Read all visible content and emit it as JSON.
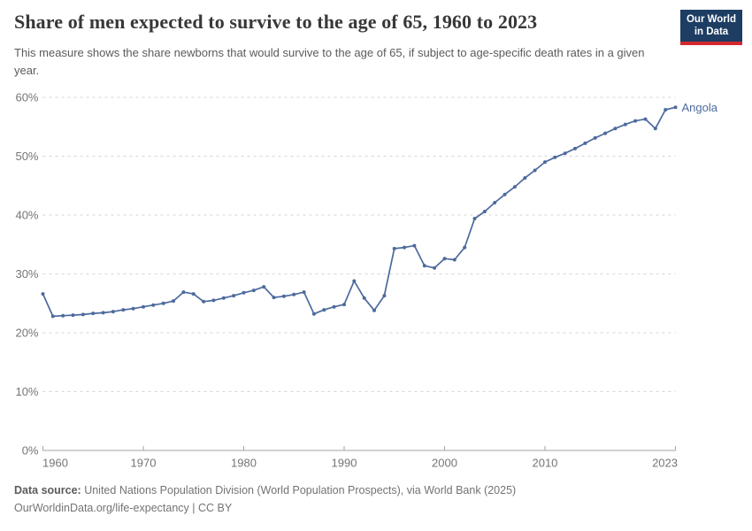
{
  "header": {
    "title": "Share of men expected to survive to the age of 65, 1960 to 2023",
    "subtitle": "This measure shows the share newborns that would survive to the age of 65, if subject to age-specific death rates in a given year.",
    "logo": {
      "line1": "Our World",
      "line2": "in Data",
      "bg_color": "#1d3d63",
      "accent_color": "#d0282e"
    }
  },
  "chart_data": {
    "type": "line",
    "title": "Share of men expected to survive to the age of 65, 1960 to 2023",
    "xlabel": "",
    "ylabel": "",
    "xlim": [
      1960,
      2023
    ],
    "ylim": [
      0,
      60
    ],
    "grid": "horizontal-dashed",
    "legend_position": "end-of-line-label",
    "x_ticks": [
      1960,
      1970,
      1980,
      1990,
      2000,
      2010,
      2023
    ],
    "y_ticks": [
      0,
      10,
      20,
      30,
      40,
      50,
      60
    ],
    "y_tick_suffix": "%",
    "colors": {
      "line": "#4c6a9c",
      "grid": "#d5d5d5",
      "axis": "#a3a3a3",
      "tick_text": "#757575"
    },
    "series": [
      {
        "name": "Angola",
        "color": "#4c6a9c",
        "years": [
          1960,
          1961,
          1962,
          1963,
          1964,
          1965,
          1966,
          1967,
          1968,
          1969,
          1970,
          1971,
          1972,
          1973,
          1974,
          1975,
          1976,
          1977,
          1978,
          1979,
          1980,
          1981,
          1982,
          1983,
          1984,
          1985,
          1986,
          1987,
          1988,
          1989,
          1990,
          1991,
          1992,
          1993,
          1994,
          1995,
          1996,
          1997,
          1998,
          1999,
          2000,
          2001,
          2002,
          2003,
          2004,
          2005,
          2006,
          2007,
          2008,
          2009,
          2010,
          2011,
          2012,
          2013,
          2014,
          2015,
          2016,
          2017,
          2018,
          2019,
          2020,
          2021,
          2022,
          2023
        ],
        "values": [
          26.6,
          22.8,
          22.9,
          23.0,
          23.1,
          23.3,
          23.4,
          23.6,
          23.9,
          24.1,
          24.4,
          24.7,
          25.0,
          25.4,
          26.9,
          26.6,
          25.3,
          25.5,
          25.9,
          26.3,
          26.8,
          27.2,
          27.8,
          26.0,
          26.2,
          26.5,
          26.9,
          23.2,
          23.9,
          24.4,
          24.8,
          28.8,
          25.9,
          23.8,
          26.3,
          34.3,
          34.5,
          34.8,
          31.4,
          31.0,
          32.6,
          32.4,
          34.5,
          39.4,
          40.6,
          42.1,
          43.5,
          44.8,
          46.3,
          47.6,
          49.0,
          49.8,
          50.5,
          51.3,
          52.2,
          53.1,
          53.9,
          54.7,
          55.4,
          56.0,
          56.3,
          54.7,
          57.9,
          58.3
        ]
      }
    ]
  },
  "footer": {
    "source_label": "Data source:",
    "source_text": " United Nations Population Division (World Population Prospects), via World Bank (2025)",
    "license_line": "OurWorldinData.org/life-expectancy | CC BY"
  }
}
